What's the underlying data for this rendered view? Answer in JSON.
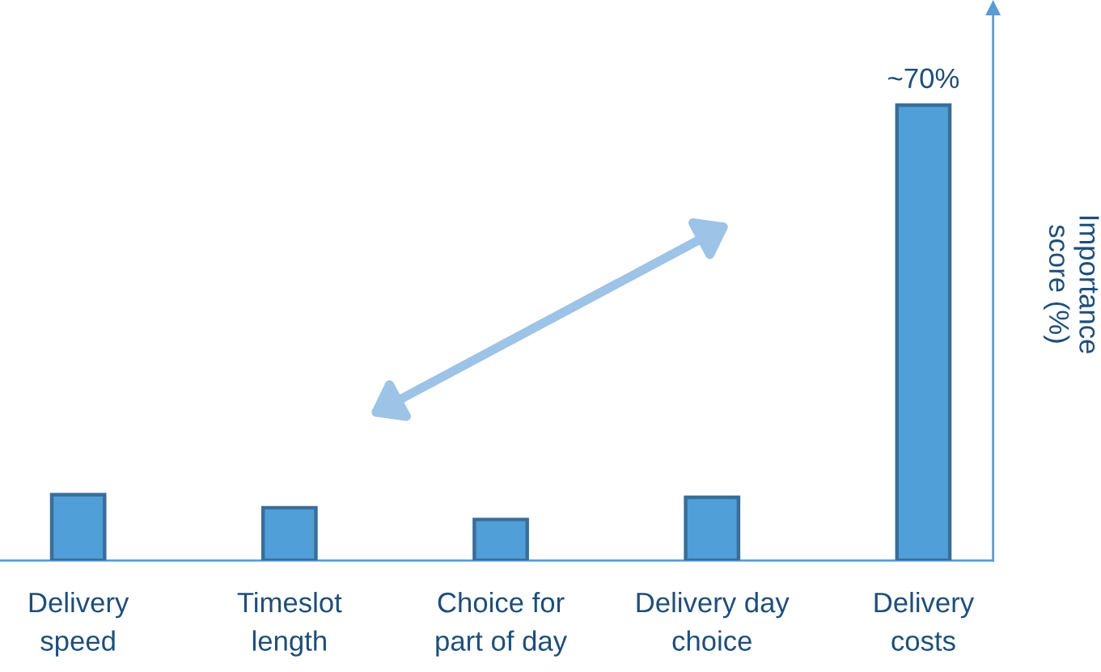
{
  "chart_data": {
    "type": "bar",
    "categories": [
      "Delivery\nspeed",
      "Timeslot\nlength",
      "Choice for\npart of day",
      "Delivery day\nchoice",
      "Delivery\ncosts"
    ],
    "values": [
      10.1,
      8.1,
      6.3,
      9.7,
      70
    ],
    "value_labels": [
      null,
      null,
      null,
      null,
      "~70%"
    ],
    "color": "#519fd8",
    "ylabel": "Importance\nscore (%)",
    "grid": false,
    "legend": false
  }
}
